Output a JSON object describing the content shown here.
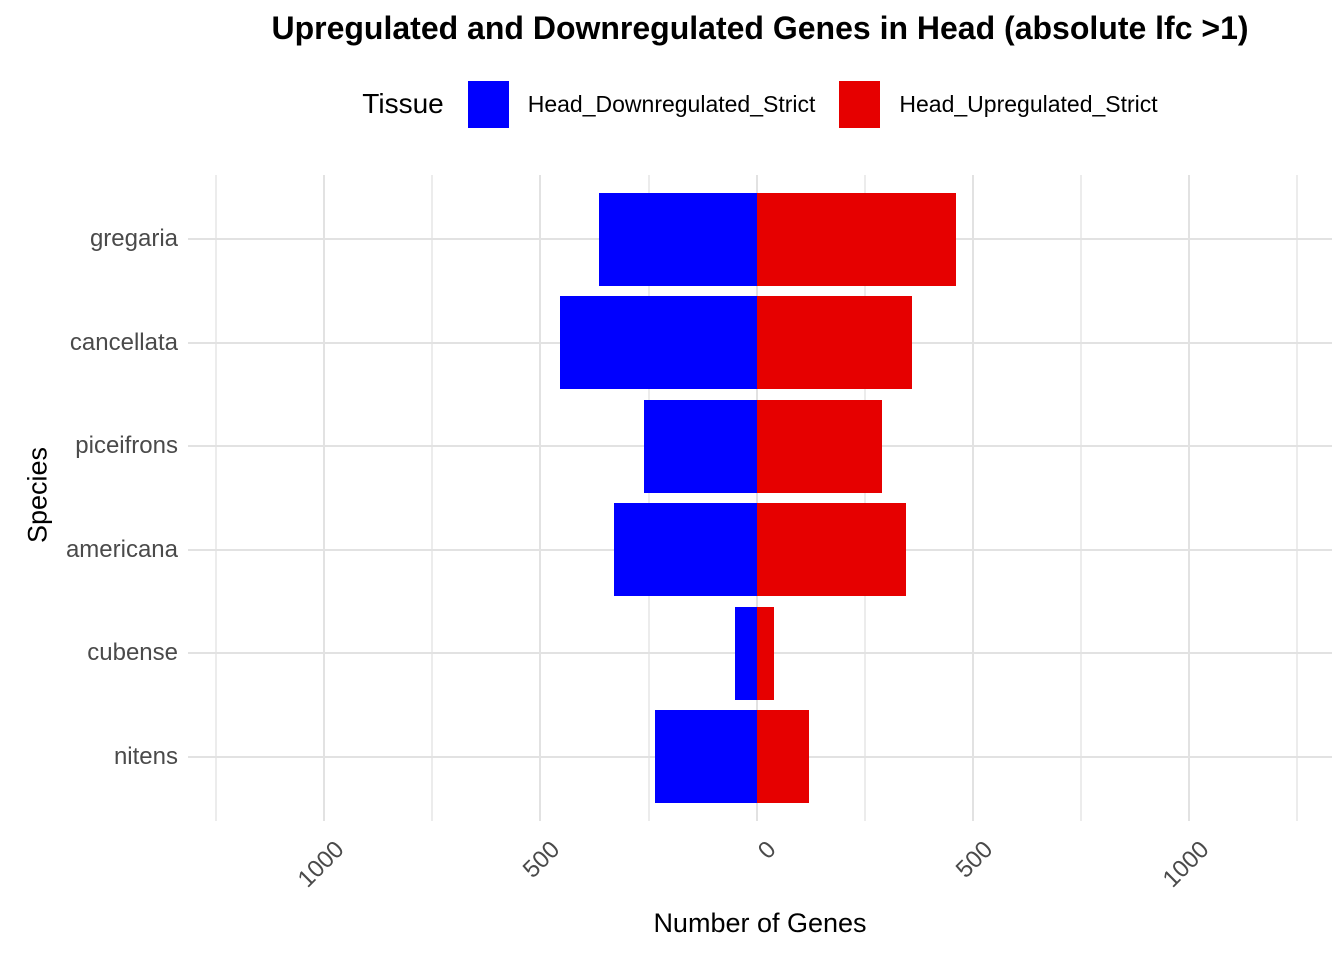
{
  "chart_data": {
    "type": "bar",
    "orientation": "horizontal-diverging",
    "title": "Upregulated and Downregulated Genes in Head (absolute lfc >1)",
    "xlabel": "Number of Genes",
    "ylabel": "Species",
    "legend_title": "Tissue",
    "legend_position": "top",
    "grid": true,
    "categories": [
      "gregaria",
      "cancellata",
      "piceifrons",
      "americana",
      "cubense",
      "nitens"
    ],
    "series": [
      {
        "name": "Head_Downregulated_Strict",
        "direction": "negative",
        "color": "#0000FF",
        "values": [
          365,
          455,
          260,
          330,
          50,
          235
        ]
      },
      {
        "name": "Head_Upregulated_Strict",
        "direction": "positive",
        "color": "#E60000",
        "values": [
          460,
          360,
          290,
          345,
          40,
          120
        ]
      }
    ],
    "x_ticks": [
      {
        "value": -1000,
        "label": "1000"
      },
      {
        "value": -500,
        "label": "500"
      },
      {
        "value": 0,
        "label": "0"
      },
      {
        "value": 500,
        "label": "500"
      },
      {
        "value": 1000,
        "label": "1000"
      }
    ],
    "gridline_step": 250,
    "xlim": [
      -1315,
      1330
    ],
    "colors": {
      "background": "#FFFFFF",
      "grid_major": "#E2E2E2",
      "grid_minor": "#ECECEC",
      "axis_text": "#4A4A4A",
      "text": "#000000"
    }
  }
}
